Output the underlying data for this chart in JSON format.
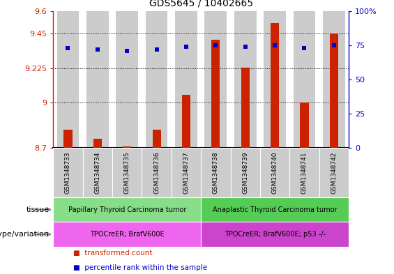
{
  "title": "GDS5645 / 10402665",
  "samples": [
    "GSM1348733",
    "GSM1348734",
    "GSM1348735",
    "GSM1348736",
    "GSM1348737",
    "GSM1348738",
    "GSM1348739",
    "GSM1348740",
    "GSM1348741",
    "GSM1348742"
  ],
  "bar_values": [
    8.82,
    8.76,
    8.71,
    8.82,
    9.05,
    9.41,
    9.23,
    9.52,
    9.0,
    9.45
  ],
  "dot_values": [
    73,
    72,
    71,
    72,
    74,
    75,
    74,
    75,
    73,
    75
  ],
  "ylim_left": [
    8.7,
    9.6
  ],
  "ylim_right": [
    0,
    100
  ],
  "yticks_left": [
    8.7,
    9.0,
    9.225,
    9.45,
    9.6
  ],
  "ytick_labels_left": [
    "8.7",
    "9",
    "9.225",
    "9.45",
    "9.6"
  ],
  "yticks_right": [
    0,
    25,
    50,
    75,
    100
  ],
  "ytick_labels_right": [
    "0",
    "25",
    "50",
    "75",
    "100%"
  ],
  "bar_color": "#cc2200",
  "dot_color": "#0000cc",
  "grid_color": "#000000",
  "tissue_groups": [
    {
      "label": "Papillary Thyroid Carcinoma tumor",
      "start": 0,
      "end": 5,
      "color": "#88dd88"
    },
    {
      "label": "Anaplastic Thyroid Carcinoma tumor",
      "start": 5,
      "end": 10,
      "color": "#55cc55"
    }
  ],
  "genotype_groups": [
    {
      "label": "TPOCreER; BrafV600E",
      "start": 0,
      "end": 5,
      "color": "#ee66ee"
    },
    {
      "label": "TPOCreER; BrafV600E; p53 -/-",
      "start": 5,
      "end": 10,
      "color": "#cc44cc"
    }
  ],
  "tissue_label": "tissue",
  "genotype_label": "genotype/variation",
  "legend_items": [
    {
      "label": "transformed count",
      "color": "#cc2200"
    },
    {
      "label": "percentile rank within the sample",
      "color": "#0000cc"
    }
  ],
  "background_color": "#ffffff",
  "bar_bg_color": "#cccccc",
  "sample_label_bg": "#cccccc"
}
